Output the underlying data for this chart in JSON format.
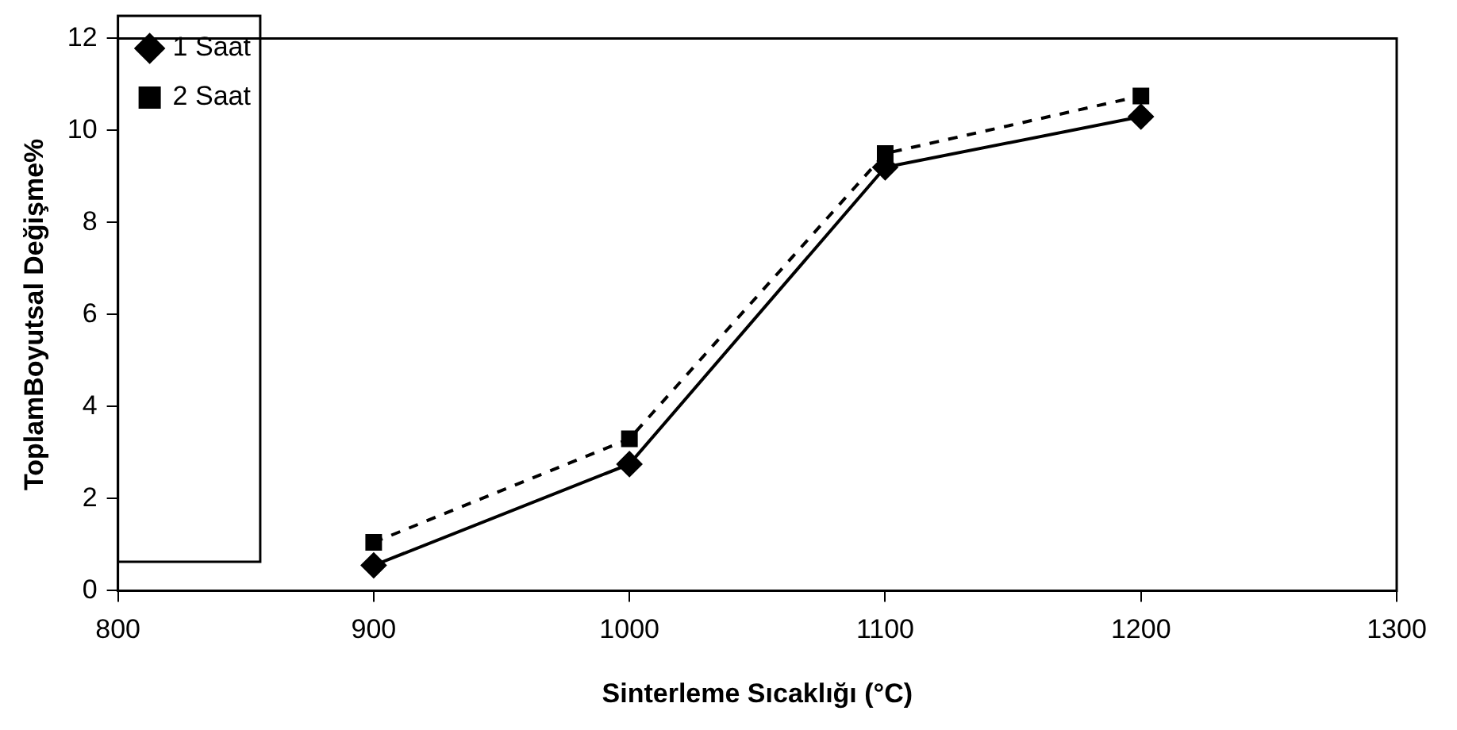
{
  "chart_data": {
    "type": "line",
    "xlabel": "Sinterleme Sıcaklığı (°C)",
    "ylabel": "ToplamBoyutsal Değişme%",
    "x": [
      900,
      1000,
      1100,
      1200
    ],
    "series": [
      {
        "name": "1 Saat",
        "color": "#000000",
        "values": [
          0.55,
          2.75,
          9.2,
          10.3
        ],
        "marker": "diamond",
        "line_style": "solid"
      },
      {
        "name": "2 Saat",
        "color": "#000000",
        "values": [
          1.05,
          3.3,
          9.5,
          10.75
        ],
        "marker": "square",
        "line_style": "dashed"
      }
    ],
    "xlim": [
      800,
      1300
    ],
    "xticks": [
      800,
      900,
      1000,
      1100,
      1200,
      1300
    ],
    "ylim": [
      0,
      12
    ],
    "yticks": [
      0,
      2,
      4,
      6,
      8,
      10,
      12
    ],
    "grid": false,
    "legend": "top left"
  }
}
